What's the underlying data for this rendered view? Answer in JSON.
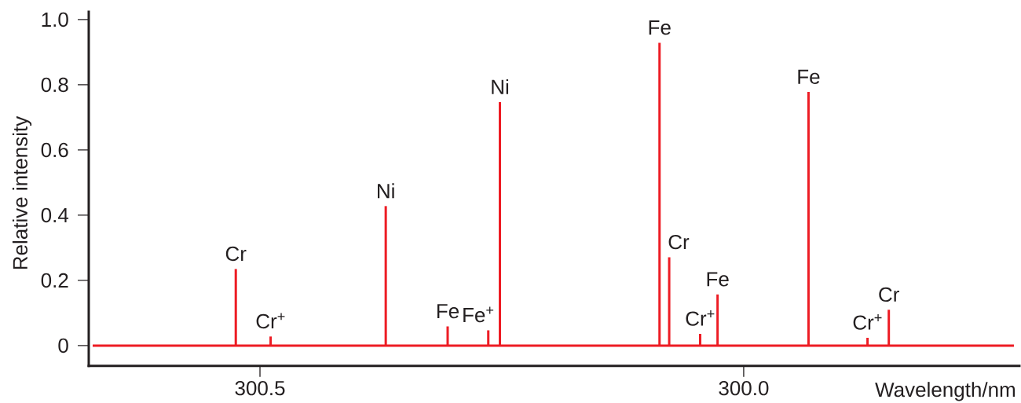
{
  "chart_data": {
    "type": "bar",
    "xlabel": "Wavelength/nm",
    "ylabel": "Relative intensity",
    "x": [
      300.525,
      300.489,
      300.37,
      300.306,
      300.264,
      300.252,
      300.087,
      300.077,
      300.045,
      300.027,
      299.933,
      299.872,
      299.85
    ],
    "values": [
      0.235,
      0.028,
      0.428,
      0.059,
      0.047,
      0.747,
      0.929,
      0.271,
      0.036,
      0.157,
      0.778,
      0.024,
      0.11
    ],
    "color": "#ed1c24",
    "xlim": [
      300.677,
      299.715
    ],
    "ylim": [
      -0.062,
      1.024
    ],
    "xticks": [
      300.5,
      {
        "value": 300,
        "label": "300.0"
      }
    ],
    "yticks": [
      0,
      0.2,
      0.4,
      0.6,
      0.8,
      {
        "value": 1,
        "label": "1.0"
      }
    ],
    "ref_lines": [
      {
        "axis": "y",
        "value": 0,
        "color": "#ed1c24"
      }
    ],
    "annotations": [
      {
        "text": "Cr",
        "x": 300.525,
        "y": 0.235
      },
      {
        "text": "Cr$^{+}$",
        "x": 300.489,
        "y": 0.028
      },
      {
        "text": "Ni",
        "x": 300.37,
        "y": 0.428
      },
      {
        "text": "Fe",
        "x": 300.306,
        "y": 0.059
      },
      {
        "text": "Fe$^{+}$",
        "x": 300.264,
        "y": 0.047
      },
      {
        "text": "Ni",
        "x": 300.252,
        "y": 0.747
      },
      {
        "text": "Fe",
        "x": 300.087,
        "y": 0.929
      },
      {
        "text": "Cr",
        "x": 300.077,
        "y": 0.271
      },
      {
        "text": "Cr$^{+}$",
        "x": 300.045,
        "y": 0.036
      },
      {
        "text": "Fe",
        "x": 300.027,
        "y": 0.157
      },
      {
        "text": "Fe",
        "x": 299.933,
        "y": 0.778
      },
      {
        "text": "Cr$^{+}$",
        "x": 299.872,
        "y": 0.024
      },
      {
        "text": "Cr",
        "x": 299.85,
        "y": 0.11
      }
    ]
  }
}
